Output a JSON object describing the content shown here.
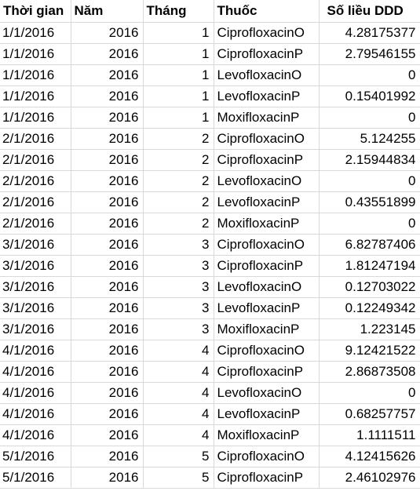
{
  "sheet": {
    "headers": {
      "date": "Thời gian",
      "year": "Năm",
      "month": "Tháng",
      "drug": "Thuốc",
      "ddd": "Số liều DDD"
    },
    "rows": [
      {
        "date": "1/1/2016",
        "year": "2016",
        "month": "1",
        "drug": "CiprofloxacinO",
        "ddd": "4.28175377"
      },
      {
        "date": "1/1/2016",
        "year": "2016",
        "month": "1",
        "drug": "CiprofloxacinP",
        "ddd": "2.79546155"
      },
      {
        "date": "1/1/2016",
        "year": "2016",
        "month": "1",
        "drug": "LevofloxacinO",
        "ddd": "0"
      },
      {
        "date": "1/1/2016",
        "year": "2016",
        "month": "1",
        "drug": "LevofloxacinP",
        "ddd": "0.15401992"
      },
      {
        "date": "1/1/2016",
        "year": "2016",
        "month": "1",
        "drug": "MoxifloxacinP",
        "ddd": "0"
      },
      {
        "date": "2/1/2016",
        "year": "2016",
        "month": "2",
        "drug": "CiprofloxacinO",
        "ddd": "5.124255"
      },
      {
        "date": "2/1/2016",
        "year": "2016",
        "month": "2",
        "drug": "CiprofloxacinP",
        "ddd": "2.15944834"
      },
      {
        "date": "2/1/2016",
        "year": "2016",
        "month": "2",
        "drug": "LevofloxacinO",
        "ddd": "0"
      },
      {
        "date": "2/1/2016",
        "year": "2016",
        "month": "2",
        "drug": "LevofloxacinP",
        "ddd": "0.43551899"
      },
      {
        "date": "2/1/2016",
        "year": "2016",
        "month": "2",
        "drug": "MoxifloxacinP",
        "ddd": "0"
      },
      {
        "date": "3/1/2016",
        "year": "2016",
        "month": "3",
        "drug": "CiprofloxacinO",
        "ddd": "6.82787406"
      },
      {
        "date": "3/1/2016",
        "year": "2016",
        "month": "3",
        "drug": "CiprofloxacinP",
        "ddd": "1.81247194"
      },
      {
        "date": "3/1/2016",
        "year": "2016",
        "month": "3",
        "drug": "LevofloxacinO",
        "ddd": "0.12703022"
      },
      {
        "date": "3/1/2016",
        "year": "2016",
        "month": "3",
        "drug": "LevofloxacinP",
        "ddd": "0.12249342"
      },
      {
        "date": "3/1/2016",
        "year": "2016",
        "month": "3",
        "drug": "MoxifloxacinP",
        "ddd": "1.223145"
      },
      {
        "date": "4/1/2016",
        "year": "2016",
        "month": "4",
        "drug": "CiprofloxacinO",
        "ddd": "9.12421522"
      },
      {
        "date": "4/1/2016",
        "year": "2016",
        "month": "4",
        "drug": "CiprofloxacinP",
        "ddd": "2.86873508"
      },
      {
        "date": "4/1/2016",
        "year": "2016",
        "month": "4",
        "drug": "LevofloxacinO",
        "ddd": "0"
      },
      {
        "date": "4/1/2016",
        "year": "2016",
        "month": "4",
        "drug": "LevofloxacinP",
        "ddd": "0.68257757"
      },
      {
        "date": "4/1/2016",
        "year": "2016",
        "month": "4",
        "drug": "MoxifloxacinP",
        "ddd": "1.1111511"
      },
      {
        "date": "5/1/2016",
        "year": "2016",
        "month": "5",
        "drug": "CiprofloxacinO",
        "ddd": "4.12415626"
      },
      {
        "date": "5/1/2016",
        "year": "2016",
        "month": "5",
        "drug": "CiprofloxacinP",
        "ddd": "2.46102976"
      }
    ]
  }
}
